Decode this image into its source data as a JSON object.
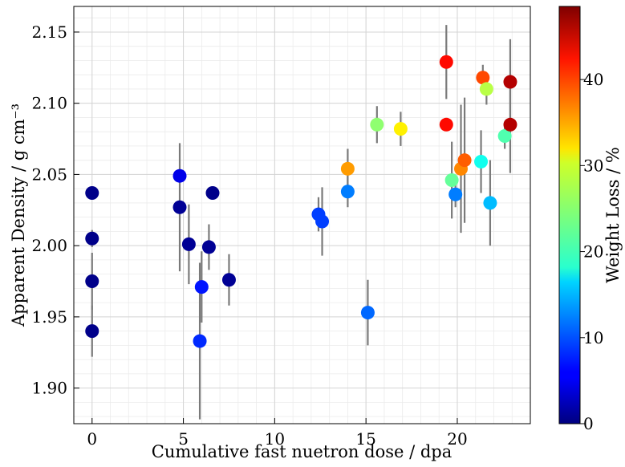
{
  "chart_data": {
    "type": "scatter",
    "xlabel": "Cumulative fast nuetron dose / dpa",
    "ylabel": "Apparent Density / g cm⁻³",
    "colorbar_label": "Weight Loss / %",
    "colormap": "jet",
    "xlim": [
      -1,
      24
    ],
    "ylim": [
      1.875,
      2.168
    ],
    "clim": [
      0,
      48.5
    ],
    "xticks": [
      0,
      5,
      10,
      15,
      20
    ],
    "xtick_labels": [
      "0",
      "5",
      "10",
      "15",
      "20"
    ],
    "yticks": [
      1.9,
      1.95,
      2.0,
      2.05,
      2.1,
      2.15
    ],
    "ytick_labels": [
      "1.90",
      "1.95",
      "2.00",
      "2.05",
      "2.10",
      "2.15"
    ],
    "cticks": [
      0,
      10,
      20,
      30,
      40
    ],
    "ctick_labels": [
      "0",
      "10",
      "20",
      "30",
      "40"
    ],
    "grid": true,
    "points": [
      {
        "x": 0.0,
        "y": 2.037,
        "err": 0.002,
        "weight_loss": 0.5
      },
      {
        "x": 0.0,
        "y": 2.005,
        "err": 0.006,
        "weight_loss": 0.5
      },
      {
        "x": 0.0,
        "y": 1.975,
        "err": 0.02,
        "weight_loss": 0.5
      },
      {
        "x": 0.0,
        "y": 1.94,
        "err": 0.018,
        "weight_loss": 0.5
      },
      {
        "x": 4.8,
        "y": 2.049,
        "err": 0.002,
        "weight_loss": 5
      },
      {
        "x": 4.8,
        "y": 2.027,
        "err": 0.045,
        "weight_loss": 1
      },
      {
        "x": 5.3,
        "y": 2.001,
        "err": 0.028,
        "weight_loss": 1
      },
      {
        "x": 6.0,
        "y": 1.971,
        "err": 0.025,
        "weight_loss": 7
      },
      {
        "x": 5.9,
        "y": 1.933,
        "err": 0.055,
        "weight_loss": 8
      },
      {
        "x": 6.4,
        "y": 1.999,
        "err": 0.016,
        "weight_loss": 1
      },
      {
        "x": 6.6,
        "y": 2.037,
        "err": 0.002,
        "weight_loss": 0.5
      },
      {
        "x": 7.5,
        "y": 1.976,
        "err": 0.018,
        "weight_loss": 1
      },
      {
        "x": 12.4,
        "y": 2.022,
        "err": 0.012,
        "weight_loss": 9
      },
      {
        "x": 12.6,
        "y": 2.017,
        "err": 0.024,
        "weight_loss": 9
      },
      {
        "x": 14.0,
        "y": 2.038,
        "err": 0.011,
        "weight_loss": 12
      },
      {
        "x": 14.0,
        "y": 2.054,
        "err": 0.014,
        "weight_loss": 35
      },
      {
        "x": 15.1,
        "y": 1.953,
        "err": 0.023,
        "weight_loss": 11
      },
      {
        "x": 15.6,
        "y": 2.085,
        "err": 0.013,
        "weight_loss": 25
      },
      {
        "x": 16.9,
        "y": 2.082,
        "err": 0.012,
        "weight_loss": 31
      },
      {
        "x": 19.4,
        "y": 2.129,
        "err": 0.026,
        "weight_loss": 42
      },
      {
        "x": 19.4,
        "y": 2.085,
        "err": 0.002,
        "weight_loss": 42
      },
      {
        "x": 19.7,
        "y": 2.046,
        "err": 0.027,
        "weight_loss": 23
      },
      {
        "x": 19.9,
        "y": 2.036,
        "err": 0.009,
        "weight_loss": 12
      },
      {
        "x": 20.2,
        "y": 2.054,
        "err": 0.045,
        "weight_loss": 36
      },
      {
        "x": 20.4,
        "y": 2.06,
        "err": 0.044,
        "weight_loss": 38
      },
      {
        "x": 21.3,
        "y": 2.059,
        "err": 0.022,
        "weight_loss": 19
      },
      {
        "x": 21.4,
        "y": 2.118,
        "err": 0.009,
        "weight_loss": 39
      },
      {
        "x": 21.6,
        "y": 2.11,
        "err": 0.011,
        "weight_loss": 27
      },
      {
        "x": 21.8,
        "y": 2.03,
        "err": 0.03,
        "weight_loss": 15
      },
      {
        "x": 22.6,
        "y": 2.077,
        "err": 0.009,
        "weight_loss": 22
      },
      {
        "x": 22.9,
        "y": 2.115,
        "err": 0.03,
        "weight_loss": 46
      },
      {
        "x": 22.9,
        "y": 2.085,
        "err": 0.034,
        "weight_loss": 46
      }
    ]
  }
}
